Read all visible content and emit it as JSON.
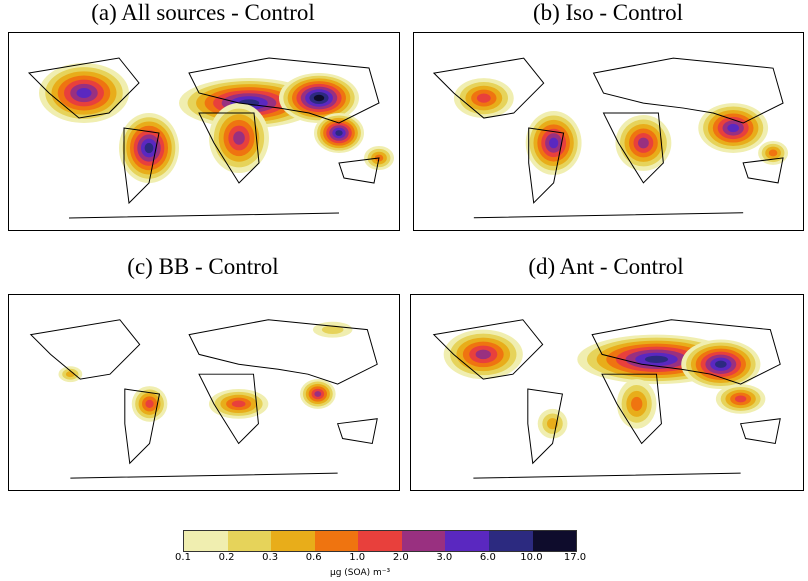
{
  "panels": [
    {
      "title": "(a) All sources - Control"
    },
    {
      "title": "(b) Iso - Control"
    },
    {
      "title": "(c) BB - Control"
    },
    {
      "title": "(d) Ant - Control"
    }
  ],
  "colorbar": {
    "ticks": [
      "0.1",
      "0.2",
      "0.3",
      "0.6",
      "1.0",
      "2.0",
      "3.0",
      "6.0",
      "10.0",
      "17.0"
    ],
    "colors": [
      "#f0eeb0",
      "#e6d35a",
      "#e8ad1a",
      "#ef7410",
      "#e8403c",
      "#993080",
      "#5a28c0",
      "#2c2a80",
      "#0e0c2c"
    ],
    "label": "μg (SOA) m⁻³"
  }
}
